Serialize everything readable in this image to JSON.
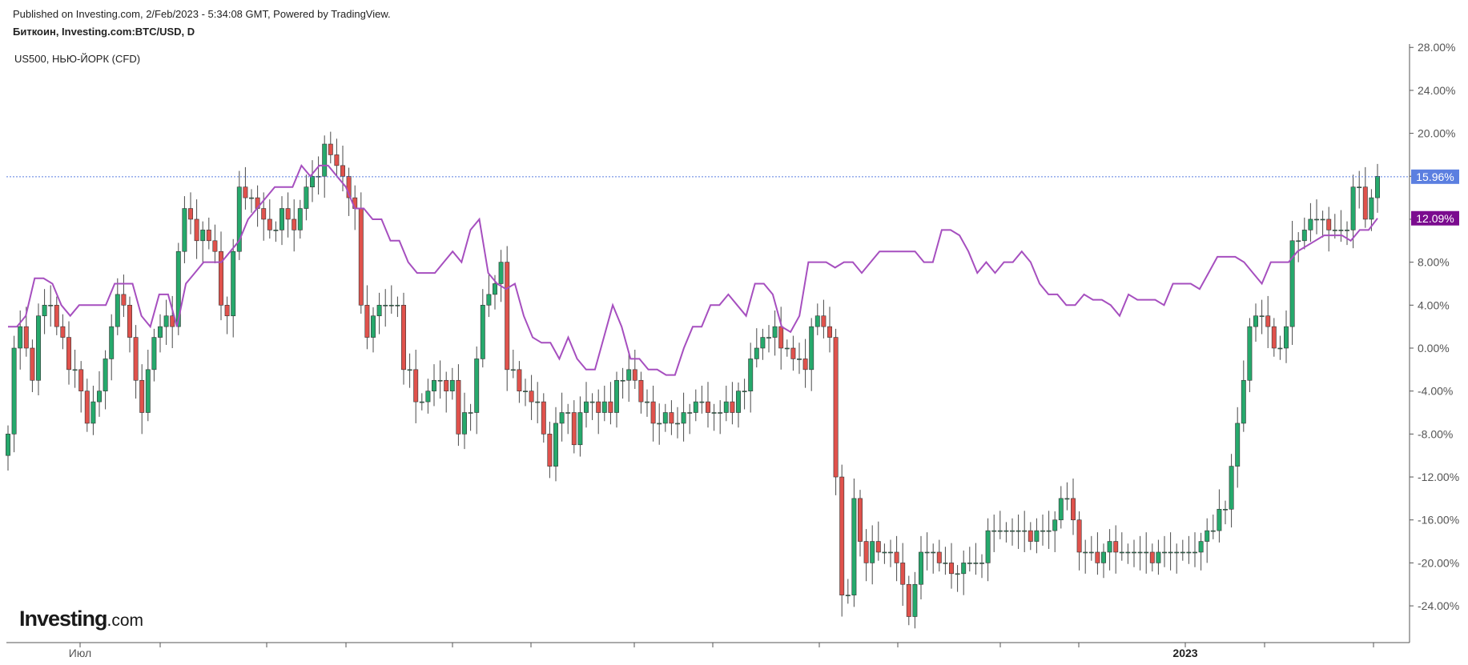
{
  "header": {
    "published": "Published on Investing.com, 2/Feb/2023 - 5:34:08 GMT, Powered by TradingView.",
    "symbol": "Биткоин, Investing.com:BTC/USD, D",
    "overlay": "US500, НЬЮ-ЙОРК (CFD)"
  },
  "logo": {
    "main": "Investing",
    "suffix": ".com"
  },
  "colors": {
    "up": "#26a96c",
    "down": "#e0524c",
    "overlay": "#a64fbf",
    "last_btc": "#5b7fe0",
    "last_spx": "#7b0b8f",
    "grid_dotted": "#5b7fe0"
  },
  "chart_data": {
    "type": "line",
    "yaxis_ticks": [
      "28.00%",
      "24.00%",
      "20.00%",
      "16.00%",
      "12.00%",
      "8.00%",
      "4.00%",
      "0.00%",
      "-4.00%",
      "-8.00%",
      "-12.00%",
      "-16.00%",
      "-20.00%",
      "-24.00%"
    ],
    "ylim": [
      -27,
      28
    ],
    "x_tick_labels": [
      "Июл",
      "2023"
    ],
    "last_values": {
      "btc": "15.96%",
      "spx": "12.09%"
    },
    "series": [
      {
        "name": "Биткоин, Investing.com:BTC/USD, D",
        "kind": "candlestick_close_pct",
        "values": [
          -8,
          0,
          2,
          0,
          -3,
          3,
          4,
          4,
          2,
          1,
          -2,
          -2,
          -4,
          -7,
          -5,
          -4,
          -1,
          2,
          5,
          4,
          1,
          -3,
          -6,
          -2,
          1,
          2,
          3,
          2,
          9,
          13,
          12,
          10,
          11,
          10,
          9,
          4,
          3,
          9,
          15,
          14,
          14,
          13,
          12,
          11,
          11,
          13,
          12,
          11,
          13,
          15,
          16,
          16,
          19,
          18,
          17,
          16,
          14,
          13,
          4,
          1,
          3,
          4,
          4,
          4,
          4,
          -2,
          -2,
          -5,
          -5,
          -4,
          -3,
          -3,
          -4,
          -3,
          -8,
          -6,
          -6,
          -1,
          4,
          5,
          6,
          8,
          -2,
          -2,
          -4,
          -4,
          -5,
          -5,
          -8,
          -11,
          -7,
          -6,
          -6,
          -9,
          -6,
          -5,
          -5,
          -6,
          -5,
          -6,
          -3,
          -3,
          -2,
          -3,
          -5,
          -5,
          -7,
          -7,
          -6,
          -7,
          -7,
          -6,
          -6,
          -5,
          -5,
          -6,
          -6,
          -6,
          -5,
          -6,
          -4,
          -4,
          -1,
          0,
          1,
          1,
          2,
          0,
          0,
          -1,
          -1,
          -2,
          2,
          3,
          2,
          1,
          -12,
          -23,
          -23,
          -14,
          -18,
          -20,
          -18,
          -19,
          -19,
          -19,
          -20,
          -22,
          -25,
          -22,
          -19,
          -19,
          -19,
          -20,
          -20,
          -21,
          -21,
          -20,
          -20,
          -20,
          -20,
          -17,
          -17,
          -17,
          -17,
          -17,
          -17,
          -17,
          -18,
          -17,
          -17,
          -17,
          -16,
          -14,
          -14,
          -16,
          -19,
          -19,
          -19,
          -20,
          -19,
          -18,
          -19,
          -19,
          -19,
          -19,
          -19,
          -19,
          -20,
          -19,
          -19,
          -19,
          -19,
          -19,
          -19,
          -19,
          -18,
          -17,
          -17,
          -15,
          -15,
          -11,
          -7,
          -3,
          2,
          3,
          3,
          2,
          0,
          0,
          2,
          10,
          10,
          11,
          12,
          12,
          12,
          11,
          11,
          11,
          11,
          15,
          15,
          12,
          14,
          16
        ]
      },
      {
        "name": "US500, НЬЮ-ЙОРК (CFD)",
        "kind": "line_pct",
        "values": [
          2,
          2,
          3,
          6.5,
          6.5,
          6,
          4,
          3,
          4,
          4,
          4,
          4,
          6,
          6,
          6,
          3,
          2,
          5,
          5,
          2,
          6,
          7,
          8,
          8,
          8,
          9,
          10,
          12,
          13,
          14,
          15,
          15,
          15,
          17,
          16,
          17,
          17,
          16,
          15,
          13,
          13,
          12,
          12,
          10,
          10,
          8,
          7,
          7,
          7,
          8,
          9,
          8,
          11,
          12,
          7,
          6,
          5.5,
          6,
          3,
          1,
          0.5,
          0.5,
          -1,
          1,
          -1,
          -2,
          -2,
          1,
          4,
          2,
          -1,
          -1,
          -2,
          -2,
          -2.5,
          -2.5,
          0,
          2,
          2,
          4,
          4,
          5,
          4,
          3,
          6,
          6,
          5,
          2,
          1.5,
          3,
          8,
          8,
          8,
          7.5,
          8,
          8,
          7,
          8,
          9,
          9,
          9,
          9,
          9,
          8,
          8,
          11,
          11,
          10.5,
          9,
          7,
          8,
          7,
          8,
          8,
          9,
          8,
          6,
          5,
          5,
          4,
          4,
          5,
          4.5,
          4.5,
          4,
          3,
          5,
          4.5,
          4.5,
          4.5,
          4,
          6,
          6,
          6,
          5.5,
          7,
          8.5,
          8.5,
          8.5,
          8,
          7,
          6,
          8,
          8,
          8,
          9,
          9.5,
          10,
          10.5,
          10.5,
          10.5,
          10,
          11,
          11,
          12.09
        ]
      }
    ]
  }
}
